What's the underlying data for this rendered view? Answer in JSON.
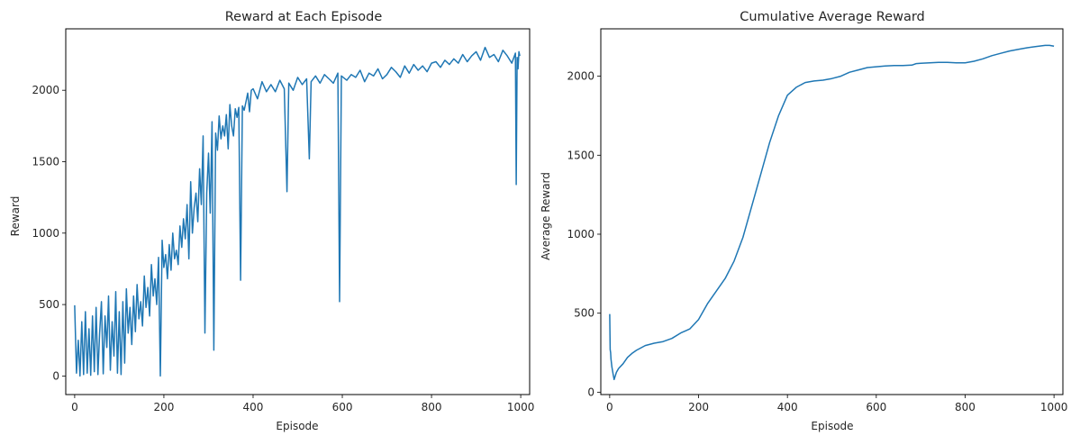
{
  "chart_data": [
    {
      "type": "line",
      "title": "Reward at Each Episode",
      "xlabel": "Episode",
      "ylabel": "Reward",
      "xlim": [
        -20,
        1020
      ],
      "ylim": [
        -130,
        2430
      ],
      "xticks": [
        0,
        200,
        400,
        600,
        800,
        1000
      ],
      "yticks": [
        0,
        500,
        1000,
        1500,
        2000
      ],
      "grid": false,
      "series": [
        {
          "color": "#1f77b4",
          "x": [
            0,
            4,
            8,
            12,
            16,
            20,
            24,
            28,
            32,
            36,
            40,
            44,
            48,
            52,
            56,
            60,
            64,
            68,
            72,
            76,
            80,
            84,
            88,
            92,
            96,
            100,
            104,
            108,
            112,
            116,
            120,
            124,
            128,
            132,
            136,
            140,
            144,
            148,
            152,
            156,
            160,
            164,
            168,
            172,
            176,
            180,
            184,
            188,
            192,
            196,
            200,
            204,
            208,
            212,
            216,
            220,
            224,
            228,
            232,
            236,
            240,
            244,
            248,
            252,
            256,
            260,
            264,
            268,
            272,
            276,
            280,
            284,
            288,
            292,
            296,
            300,
            304,
            308,
            312,
            316,
            320,
            324,
            328,
            332,
            336,
            340,
            344,
            348,
            352,
            356,
            360,
            364,
            368,
            372,
            376,
            380,
            384,
            388,
            392,
            396,
            400,
            410,
            420,
            430,
            440,
            450,
            460,
            470,
            476,
            480,
            490,
            500,
            510,
            520,
            526,
            530,
            540,
            550,
            560,
            570,
            580,
            590,
            594,
            598,
            610,
            620,
            630,
            640,
            650,
            660,
            670,
            680,
            690,
            700,
            710,
            720,
            730,
            740,
            750,
            760,
            770,
            780,
            790,
            800,
            810,
            820,
            830,
            840,
            850,
            860,
            870,
            880,
            890,
            900,
            910,
            920,
            930,
            940,
            950,
            960,
            970,
            980,
            988,
            990,
            992,
            994,
            996,
            998
          ],
          "y": [
            495,
            20,
            250,
            0,
            380,
            10,
            450,
            20,
            330,
            5,
            420,
            30,
            480,
            10,
            300,
            520,
            15,
            420,
            200,
            560,
            40,
            380,
            140,
            590,
            20,
            450,
            10,
            520,
            90,
            610,
            300,
            480,
            220,
            560,
            310,
            640,
            400,
            520,
            350,
            700,
            480,
            620,
            420,
            780,
            560,
            680,
            500,
            830,
            0,
            950,
            760,
            850,
            680,
            920,
            740,
            1000,
            820,
            880,
            780,
            1050,
            900,
            1100,
            960,
            1200,
            820,
            1360,
            1000,
            1180,
            1280,
            1080,
            1450,
            1200,
            1680,
            300,
            1280,
            1560,
            1140,
            1780,
            180,
            1700,
            1580,
            1820,
            1660,
            1750,
            1680,
            1830,
            1590,
            1900,
            1750,
            1680,
            1870,
            1810,
            1880,
            670,
            1890,
            1860,
            1920,
            1980,
            1850,
            2000,
            2010,
            1940,
            2060,
            1990,
            2040,
            1990,
            2070,
            2010,
            1290,
            2050,
            2000,
            2090,
            2040,
            2080,
            1520,
            2060,
            2100,
            2050,
            2110,
            2080,
            2050,
            2120,
            520,
            2100,
            2070,
            2110,
            2090,
            2140,
            2060,
            2120,
            2100,
            2150,
            2080,
            2110,
            2160,
            2130,
            2090,
            2170,
            2120,
            2180,
            2140,
            2170,
            2130,
            2190,
            2200,
            2160,
            2210,
            2180,
            2220,
            2190,
            2250,
            2200,
            2240,
            2270,
            2210,
            2300,
            2230,
            2250,
            2200,
            2280,
            2240,
            2190,
            2260,
            1340,
            2230,
            2150,
            2270,
            2240
          ]
        }
      ]
    },
    {
      "type": "line",
      "title": "Cumulative Average Reward",
      "xlabel": "Episode",
      "ylabel": "Average Reward",
      "xlim": [
        -20,
        1020
      ],
      "ylim": [
        -15,
        2300
      ],
      "xticks": [
        0,
        200,
        400,
        600,
        800,
        1000
      ],
      "yticks": [
        0,
        500,
        1000,
        1500,
        2000
      ],
      "grid": false,
      "series": [
        {
          "color": "#1f77b4",
          "x": [
            0,
            1,
            2,
            3,
            5,
            8,
            10,
            15,
            20,
            30,
            40,
            50,
            60,
            80,
            100,
            120,
            140,
            160,
            180,
            200,
            220,
            240,
            260,
            280,
            300,
            320,
            340,
            360,
            380,
            400,
            420,
            440,
            460,
            480,
            500,
            520,
            540,
            560,
            580,
            600,
            620,
            640,
            660,
            680,
            690,
            700,
            720,
            740,
            760,
            780,
            800,
            820,
            840,
            860,
            880,
            900,
            920,
            940,
            960,
            980,
            990,
            1000
          ],
          "y": [
            495,
            270,
            250,
            210,
            160,
            110,
            80,
            125,
            150,
            180,
            220,
            245,
            265,
            295,
            310,
            320,
            340,
            375,
            400,
            460,
            560,
            640,
            720,
            830,
            980,
            1180,
            1380,
            1580,
            1750,
            1880,
            1930,
            1960,
            1970,
            1975,
            1985,
            2000,
            2025,
            2040,
            2055,
            2060,
            2065,
            2068,
            2068,
            2070,
            2080,
            2082,
            2085,
            2088,
            2088,
            2085,
            2085,
            2095,
            2110,
            2130,
            2145,
            2160,
            2170,
            2180,
            2188,
            2195,
            2195,
            2190
          ]
        }
      ]
    }
  ]
}
